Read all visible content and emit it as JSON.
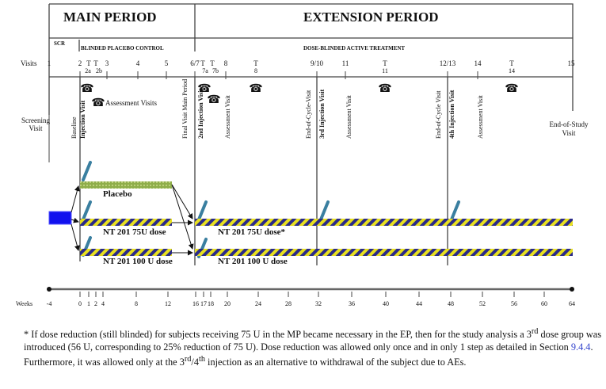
{
  "periods": {
    "main": "MAIN PERIOD",
    "extension": "EXTENSION PERIOD"
  },
  "phases": {
    "scr": "SCR",
    "blinded": "BLINDED PLACEBO CONTROL",
    "active": "DOSE-BLINDED ACTIVE TREATMENT"
  },
  "visits_label": "Visits",
  "visits": [
    "1",
    "2",
    "T",
    "T",
    "3",
    "4",
    "5",
    "6/7",
    "T",
    "T",
    "8",
    "T",
    "9/10",
    "11",
    "T",
    "12/13",
    "14",
    "T",
    "15"
  ],
  "visit_sublabels": [
    "2a",
    "2b",
    "7a",
    "7b",
    "8",
    "11",
    "14"
  ],
  "annotations": {
    "assessment_visits": "Assessment Visits",
    "screening": "Screening",
    "screening2": "Visit",
    "end_of_study": "End-of-Study",
    "end_of_study2": "Visit"
  },
  "vertical_labels": [
    "Baseline",
    "Injection Visit",
    "Final Visit Main Period",
    "2nd Injection Visit",
    "Assessment Visit",
    "End-of-Cycle-Visit",
    "3rd Injection Visit",
    "Assessment Visit",
    "End-of-Cycle Visit",
    "4th Injection Visit",
    "Assessment Visit"
  ],
  "arms": {
    "placebo": "Placebo",
    "dose75": "NT 201 75U dose",
    "dose100": "NT 201 100 U dose",
    "dose75_ep": "NT 201 75U dose*",
    "dose100_ep": "NT 201 100 U dose"
  },
  "weeks_label": "Weeks",
  "weeks": [
    "-4",
    "0",
    "1",
    "2",
    "4",
    "8",
    "12",
    "16",
    "17",
    "18",
    "20",
    "24",
    "28",
    "32",
    "36",
    "40",
    "44",
    "48",
    "52",
    "56",
    "60",
    "64"
  ],
  "footnote": {
    "p1": "* If dose reduction (still blinded) for subjects receiving 75 U in the MP became necessary in the EP, then for the study analysis a 3",
    "sup1": "rd",
    "p2": " dose group was introduced (56 U, corresponding to 25% reduction of 75 U). Dose reduction was allowed only once and in only 1 step as detailed in Section ",
    "link": "9.4.4",
    "p3": ". Furthermore, it was allowed only at the 3",
    "sup2": "rd",
    "p4": "/4",
    "sup3": "th",
    "p5": " injection as an alternative to withdrawal of the subject due to AEs."
  },
  "colors": {
    "screening_box": "#1010ee",
    "placebo_bar": "#8fae4a",
    "hatch_a": "#2a2a8a",
    "hatch_b": "#e8e020",
    "injection": "#7fc6e0"
  }
}
